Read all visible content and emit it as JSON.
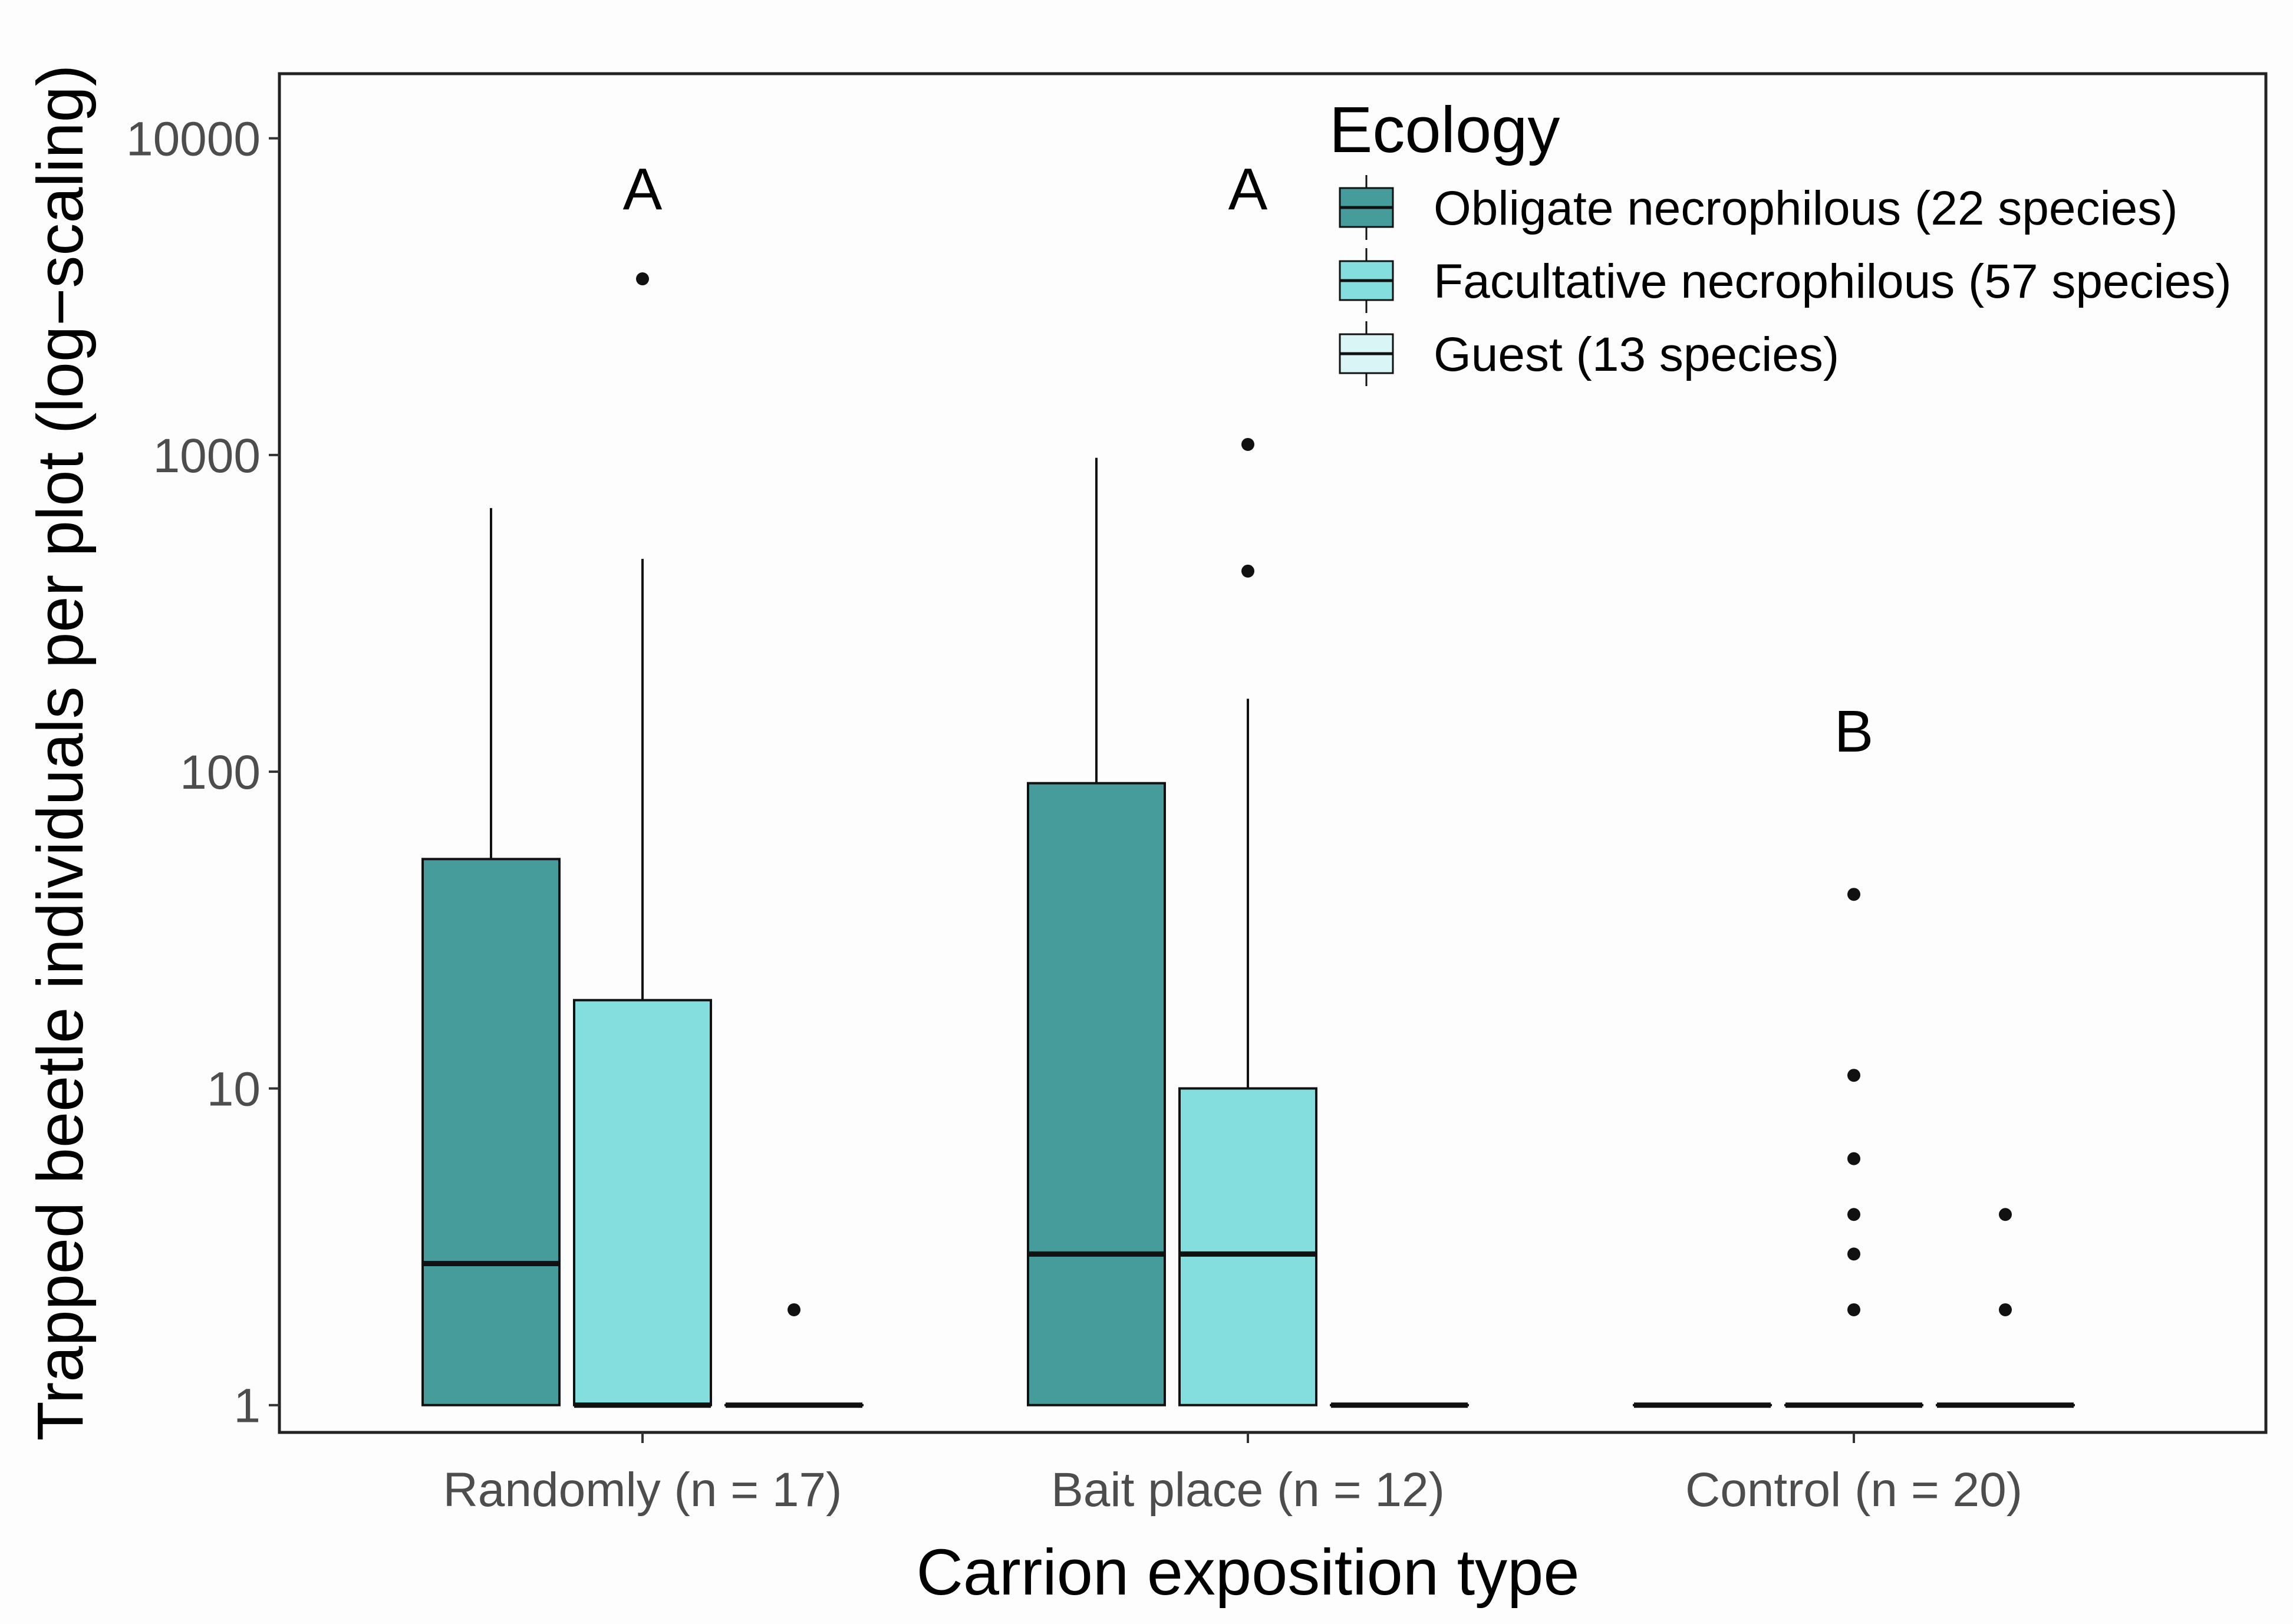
{
  "chart_data": {
    "type": "boxplot",
    "title": "",
    "xlabel": "Carrion exposition type",
    "ylabel": "Trapped beetle individuals per plot (log−scaling)",
    "yscale": "log10",
    "ylim": [
      0.82,
      16000
    ],
    "yticks": [
      1,
      10,
      100,
      1000,
      10000
    ],
    "ytick_labels": [
      "1",
      "10",
      "100",
      "1000",
      "10000"
    ],
    "categories": [
      "Randomly (n = 17)",
      "Bait place (n = 12)",
      "Control (n = 20)"
    ],
    "significance_letters": [
      "A",
      "A",
      "B"
    ],
    "legend": {
      "title": "Ecology",
      "position": "top-right"
    },
    "series": [
      {
        "name": "Obligate necrophilous (22 species)",
        "color": "#469B9B",
        "boxes": [
          {
            "q1": 1,
            "median": 2.8,
            "q3": 53,
            "whisker_low": 1,
            "whisker_high": 680,
            "outliers": []
          },
          {
            "q1": 1,
            "median": 3,
            "q3": 92,
            "whisker_low": 1,
            "whisker_high": 980,
            "outliers": []
          },
          {
            "q1": 1,
            "median": 1,
            "q3": 1,
            "whisker_low": 1,
            "whisker_high": 1,
            "outliers": []
          }
        ]
      },
      {
        "name": "Facultative necrophilous (57 species)",
        "color": "#85DEDE",
        "boxes": [
          {
            "q1": 1,
            "median": 1,
            "q3": 19,
            "whisker_low": 1,
            "whisker_high": 470,
            "outliers": [
              3600
            ]
          },
          {
            "q1": 1,
            "median": 3,
            "q3": 10,
            "whisker_low": 1,
            "whisker_high": 170,
            "outliers": [
              430,
              1080
            ]
          },
          {
            "q1": 1,
            "median": 1,
            "q3": 1,
            "whisker_low": 1,
            "whisker_high": 1,
            "outliers": [
              2,
              3,
              4,
              6,
              11,
              41
            ]
          }
        ]
      },
      {
        "name": "Guest (13 species)",
        "color": "#DAF5F5",
        "boxes": [
          {
            "q1": 1,
            "median": 1,
            "q3": 1,
            "whisker_low": 1,
            "whisker_high": 1,
            "outliers": [
              2
            ]
          },
          {
            "q1": 1,
            "median": 1,
            "q3": 1,
            "whisker_low": 1,
            "whisker_high": 1,
            "outliers": []
          },
          {
            "q1": 1,
            "median": 1,
            "q3": 1,
            "whisker_low": 1,
            "whisker_high": 1,
            "outliers": [
              2,
              4
            ]
          }
        ]
      }
    ]
  }
}
